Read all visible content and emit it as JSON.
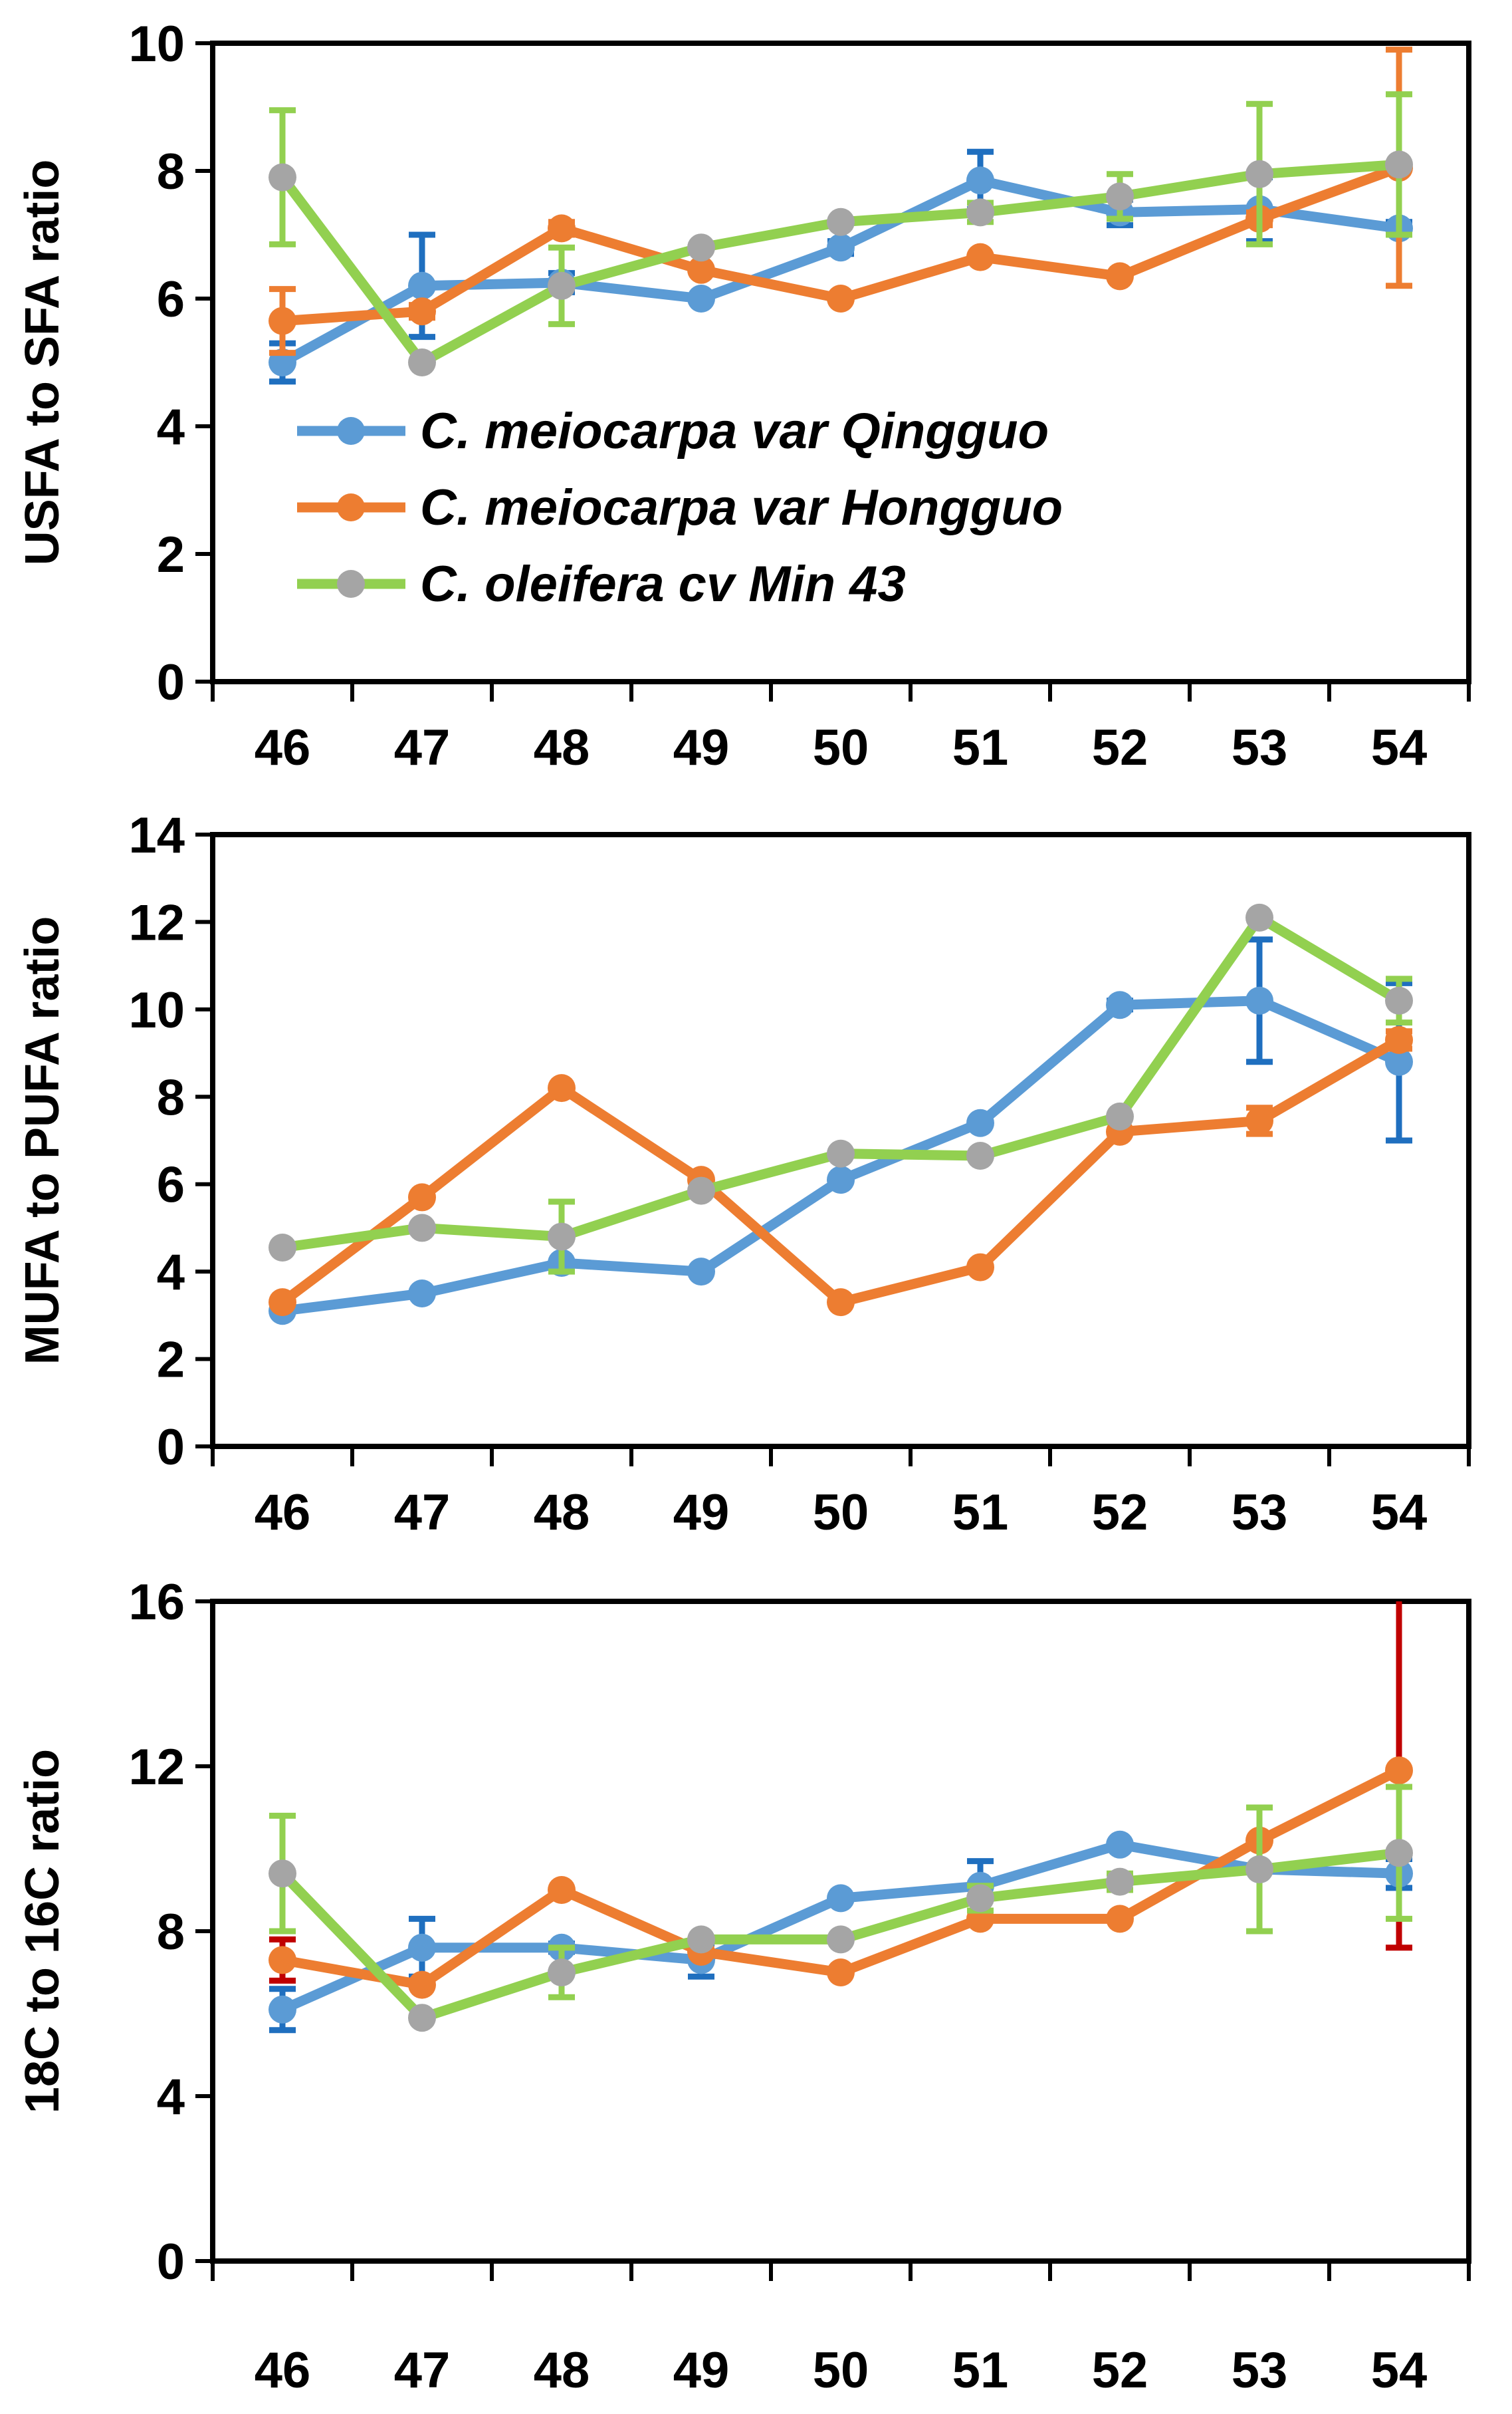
{
  "chart_data": [
    {
      "type": "line",
      "ylabel": "USFA to SFA ratio",
      "xlabel": "",
      "title": "",
      "ylim": [
        0,
        10
      ],
      "yticks": [
        0,
        2,
        4,
        6,
        8,
        10
      ],
      "categories": [
        "46",
        "47",
        "48",
        "49",
        "50",
        "51",
        "52",
        "53",
        "54"
      ],
      "grid": false,
      "legend": "inside-left",
      "series": [
        {
          "name": "C. meiocarpa var Qingguo",
          "color": "#5B9BD5",
          "error_color": "#1F6FBF",
          "values": [
            5.0,
            6.2,
            6.25,
            6.0,
            6.8,
            7.85,
            7.35,
            7.4,
            7.1
          ],
          "errors": [
            0.3,
            0.8,
            0.15,
            0.05,
            0.1,
            0.45,
            0.2,
            0.5,
            0.1
          ]
        },
        {
          "name": "C. meiocarpa var Hongguo",
          "color": "#ED7D31",
          "error_color": "#ED7D31",
          "values": [
            5.65,
            5.8,
            7.1,
            6.45,
            6.0,
            6.65,
            6.35,
            7.25,
            8.05
          ],
          "errors": [
            0.5,
            0.1,
            0.1,
            0.05,
            0.05,
            0.05,
            0.05,
            0.1,
            1.85
          ]
        },
        {
          "name": "C. oleifera cv Min 43",
          "color": "#92D050",
          "marker_color": "#A5A5A5",
          "error_color": "#92D050",
          "values": [
            7.9,
            5.0,
            6.2,
            6.8,
            7.2,
            7.35,
            7.6,
            7.95,
            8.1
          ],
          "errors": [
            1.05,
            0.05,
            0.6,
            0.05,
            0.05,
            0.15,
            0.35,
            1.1,
            1.1
          ]
        }
      ]
    },
    {
      "type": "line",
      "ylabel": "MUFA to PUFA ratio",
      "xlabel": "",
      "title": "",
      "ylim": [
        0,
        14
      ],
      "yticks": [
        0,
        2,
        4,
        6,
        8,
        10,
        12,
        14
      ],
      "categories": [
        "46",
        "47",
        "48",
        "49",
        "50",
        "51",
        "52",
        "53",
        "54"
      ],
      "grid": false,
      "series": [
        {
          "name": "C. meiocarpa var Qingguo",
          "color": "#5B9BD5",
          "error_color": "#1F6FBF",
          "values": [
            3.1,
            3.5,
            4.2,
            4.0,
            6.1,
            7.4,
            10.1,
            10.2,
            8.8
          ],
          "errors": [
            0.05,
            0.05,
            0.05,
            0.05,
            0.05,
            0.05,
            0.1,
            1.4,
            1.8
          ]
        },
        {
          "name": "C. meiocarpa var Hongguo",
          "color": "#ED7D31",
          "error_color": "#ED7D31",
          "values": [
            3.3,
            5.7,
            8.2,
            6.1,
            3.3,
            4.1,
            7.2,
            7.45,
            9.3
          ],
          "errors": [
            0.05,
            0.05,
            0.05,
            0.05,
            0.05,
            0.05,
            0.05,
            0.3,
            0.2
          ]
        },
        {
          "name": "C. oleifera cv Min 43",
          "color": "#92D050",
          "marker_color": "#A5A5A5",
          "error_color": "#92D050",
          "values": [
            4.55,
            5.0,
            4.8,
            5.85,
            6.7,
            6.65,
            7.55,
            12.1,
            10.2
          ],
          "errors": [
            0.05,
            0.05,
            0.8,
            0.05,
            0.05,
            0.05,
            0.05,
            0.05,
            0.5
          ]
        }
      ]
    },
    {
      "type": "line",
      "ylabel": "18C to 16C ratio",
      "xlabel": "",
      "title": "",
      "ylim": [
        0,
        16
      ],
      "yticks": [
        0,
        4,
        8,
        12,
        16
      ],
      "categories": [
        "46",
        "47",
        "48",
        "49",
        "50",
        "51",
        "52",
        "53",
        "54"
      ],
      "grid": false,
      "series": [
        {
          "name": "C. meiocarpa var Qingguo",
          "color": "#5B9BD5",
          "error_color": "#1F6FBF",
          "values": [
            6.1,
            7.6,
            7.6,
            7.3,
            8.8,
            9.1,
            10.1,
            9.5,
            9.4
          ],
          "errors": [
            0.5,
            0.7,
            0.1,
            0.4,
            0.05,
            0.6,
            0.05,
            0.05,
            0.35
          ]
        },
        {
          "name": "C. meiocarpa var Hongguo",
          "color": "#ED7D31",
          "error_color": "#C00000",
          "values": [
            7.3,
            6.7,
            9.0,
            7.5,
            7.0,
            8.3,
            8.3,
            10.2,
            11.9
          ],
          "errors": [
            0.5,
            0.05,
            0.05,
            0.05,
            0.05,
            0.05,
            0.05,
            0.05,
            4.3
          ]
        },
        {
          "name": "C. oleifera cv Min 43",
          "color": "#92D050",
          "marker_color": "#A5A5A5",
          "error_color": "#92D050",
          "values": [
            9.4,
            5.9,
            7.0,
            7.8,
            7.8,
            8.8,
            9.2,
            9.5,
            9.9
          ],
          "errors": [
            1.4,
            0.05,
            0.6,
            0.05,
            0.05,
            0.3,
            0.2,
            1.5,
            1.6
          ]
        }
      ]
    }
  ]
}
